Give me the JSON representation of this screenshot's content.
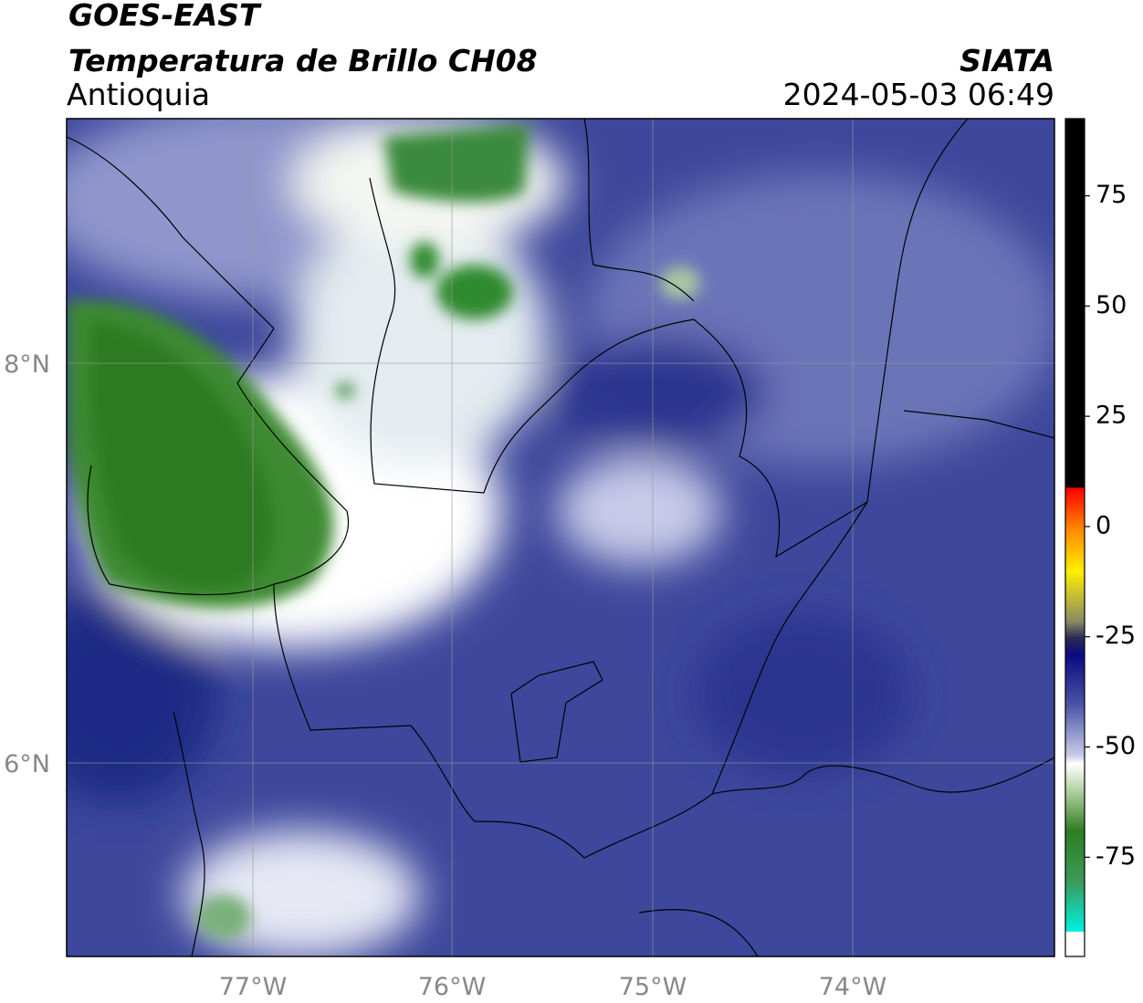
{
  "header": {
    "satellite": "GOES-EAST",
    "product": "Temperatura de Brillo CH08",
    "region": "Antioquia",
    "agency": "SIATA",
    "datetime": "2024-05-03 06:49"
  },
  "map": {
    "lat_labels": [
      "8°N",
      "6°N"
    ],
    "lon_labels": [
      "77°W",
      "76°W",
      "75°W",
      "74°W"
    ]
  },
  "colorbar": {
    "range": [
      -97.5,
      92.5
    ],
    "ticks": [
      75,
      50,
      25,
      0,
      -25,
      -50,
      -75
    ]
  }
}
